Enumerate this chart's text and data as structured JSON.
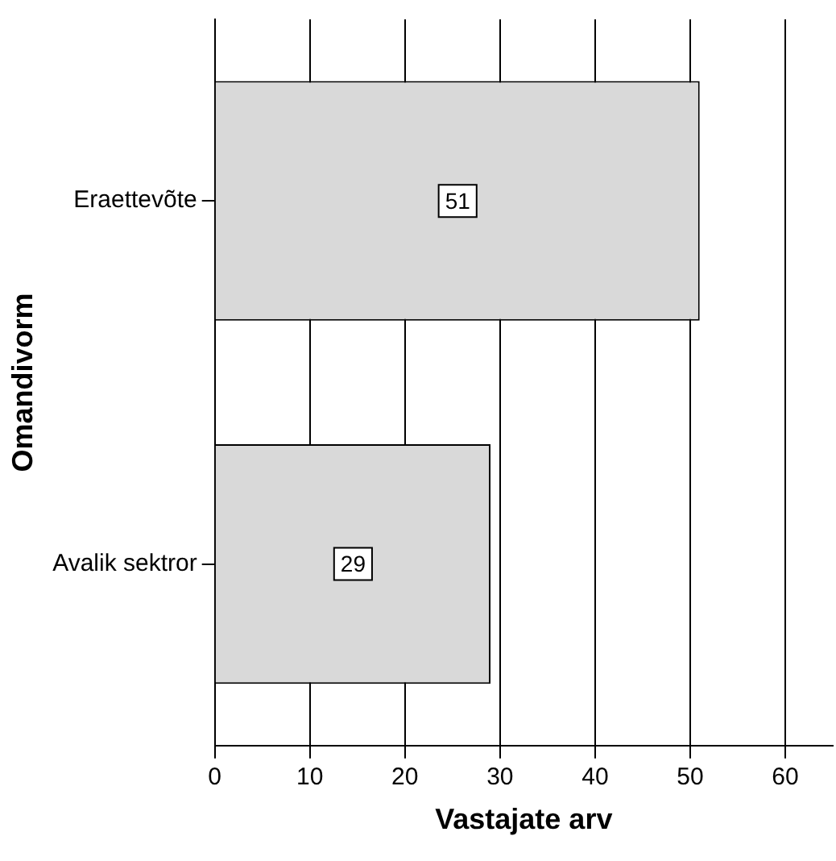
{
  "chart_data": {
    "type": "bar",
    "orientation": "horizontal",
    "xlabel": "Vastajate arv",
    "ylabel": "Omandivorm",
    "categories": [
      "Eraettevõte",
      "Avalik sektror"
    ],
    "values": [
      51,
      29
    ],
    "color": "#d9d9d9",
    "xlim": [
      0,
      65
    ],
    "xticks": [
      0,
      10,
      20,
      30,
      40,
      50,
      60
    ],
    "grid": "x",
    "data_labels": true
  }
}
